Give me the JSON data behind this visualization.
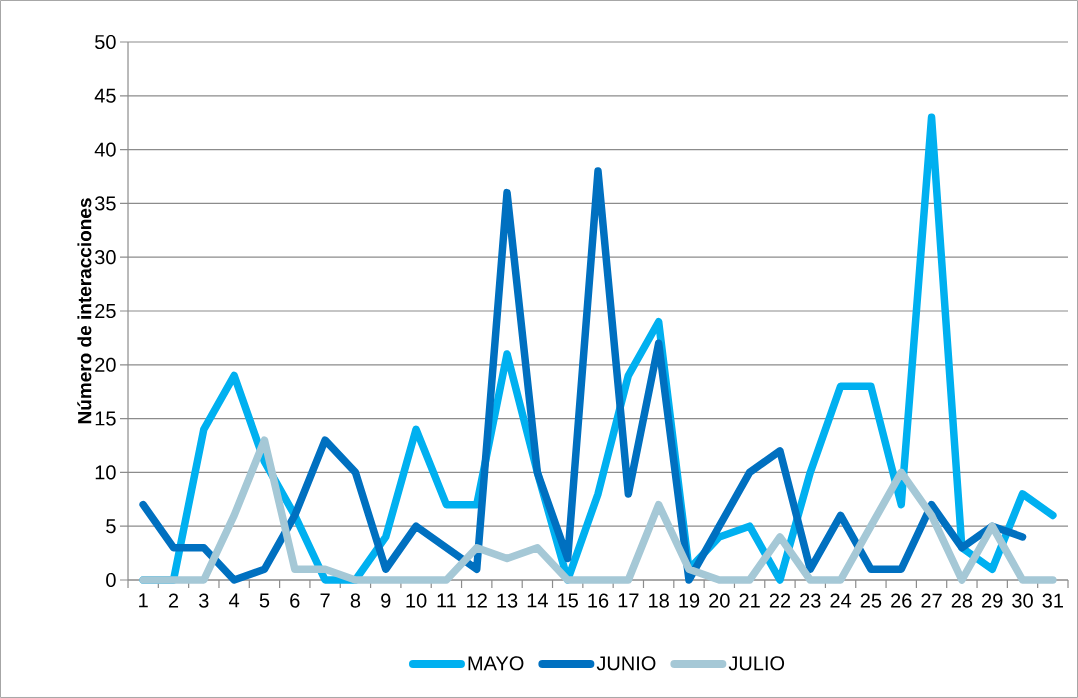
{
  "chart_data": {
    "type": "line",
    "ylabel": "Número de interacciones",
    "categories": [
      "1",
      "2",
      "3",
      "4",
      "5",
      "6",
      "7",
      "8",
      "9",
      "10",
      "11",
      "12",
      "13",
      "14",
      "15",
      "16",
      "17",
      "18",
      "19",
      "20",
      "21",
      "22",
      "23",
      "24",
      "25",
      "26",
      "27",
      "28",
      "29",
      "30",
      "31"
    ],
    "series": [
      {
        "name": "MAYO",
        "color": "#00b0f0",
        "values": [
          0,
          0,
          14,
          19,
          11,
          6,
          0,
          0,
          4,
          14,
          7,
          7,
          21,
          10,
          0,
          8,
          19,
          24,
          1,
          4,
          5,
          0,
          10,
          18,
          18,
          7,
          43,
          3,
          1,
          8,
          6
        ]
      },
      {
        "name": "JUNIO",
        "color": "#0070c0",
        "values": [
          7,
          3,
          3,
          0,
          1,
          6,
          13,
          10,
          1,
          5,
          3,
          1,
          36,
          10,
          2,
          38,
          8,
          22,
          0,
          5,
          10,
          12,
          1,
          6,
          1,
          1,
          7,
          3,
          5,
          4,
          null
        ]
      },
      {
        "name": "JULIO",
        "color": "#a5c8d6",
        "values": [
          0,
          0,
          0,
          6,
          13,
          1,
          1,
          0,
          0,
          0,
          0,
          3,
          2,
          3,
          0,
          0,
          0,
          7,
          1,
          0,
          0,
          4,
          0,
          0,
          5,
          10,
          6,
          0,
          5,
          0,
          0
        ]
      }
    ],
    "ylim": [
      0,
      50
    ],
    "yticks": [
      0,
      5,
      10,
      15,
      20,
      25,
      30,
      35,
      40,
      45,
      50
    ],
    "grid": "y",
    "legend": "bottom"
  }
}
